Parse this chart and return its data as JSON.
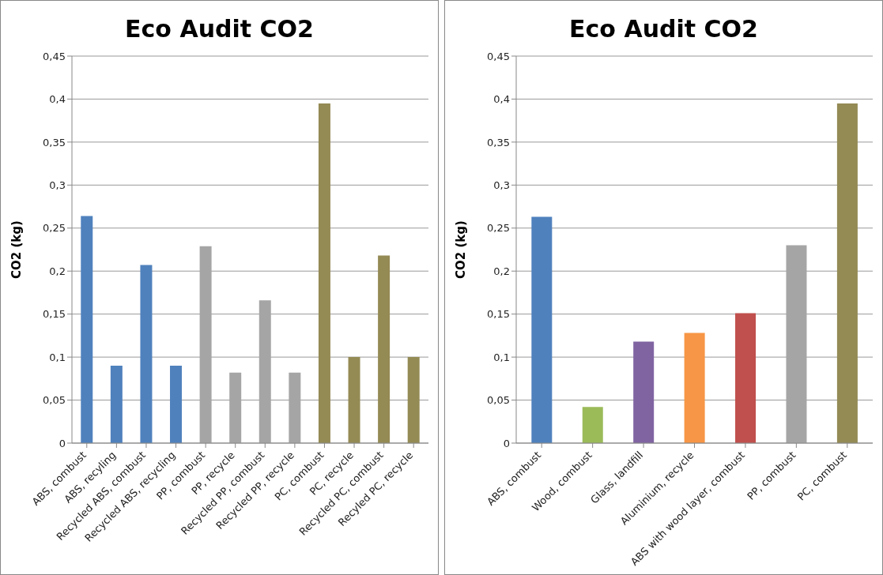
{
  "chart_data": [
    {
      "type": "bar",
      "title": "Eco Audit CO2",
      "ylabel": "CO2 (kg)",
      "categories": [
        "ABS, combust",
        "ABS, recyling",
        "Recycled ABS, combust",
        "Recycled ABS, recycling",
        "PP, combust",
        "PP, recycle",
        "Recycled PP, combust",
        "Recycled PP, recycle",
        "PC, combust",
        "PC, recycle",
        "Recycled PC, combust",
        "Recyled PC, recycle"
      ],
      "values": [
        0.264,
        0.09,
        0.207,
        0.09,
        0.229,
        0.082,
        0.166,
        0.082,
        0.395,
        0.1,
        0.218,
        0.1
      ],
      "colors": [
        "#4f81bd",
        "#4f81bd",
        "#4f81bd",
        "#4f81bd",
        "#a5a5a5",
        "#a5a5a5",
        "#a5a5a5",
        "#a5a5a5",
        "#948a54",
        "#948a54",
        "#948a54",
        "#948a54"
      ],
      "ylim": [
        0,
        0.45
      ],
      "yticks": [
        0,
        {
          "value": 0.05,
          "label": "0,05"
        },
        {
          "value": 0.1,
          "label": "0,1"
        },
        {
          "value": 0.15,
          "label": "0,15"
        },
        {
          "value": 0.2,
          "label": "0,2"
        },
        {
          "value": 0.25,
          "label": "0,25"
        },
        {
          "value": 0.3,
          "label": "0,3"
        },
        {
          "value": 0.35,
          "label": "0,35"
        },
        {
          "value": 0.4,
          "label": "0,4"
        },
        {
          "value": 0.45,
          "label": "0,45"
        }
      ],
      "grid": "y",
      "legend": false
    },
    {
      "type": "bar",
      "title": "Eco Audit CO2",
      "ylabel": "CO2 (kg)",
      "categories": [
        "ABS, combust",
        "Wood, combust",
        "Glass, landfill",
        "Aluminium, recycle",
        "ABS with wood layer, combust",
        "PP, combust",
        "PC, combust"
      ],
      "values": [
        0.263,
        0.042,
        0.118,
        0.128,
        0.151,
        0.23,
        0.395
      ],
      "colors": [
        "#4f81bd",
        "#9bbb59",
        "#8064a2",
        "#f79646",
        "#c0504d",
        "#a5a5a5",
        "#948a54"
      ],
      "ylim": [
        0,
        0.45
      ],
      "yticks": [
        0,
        {
          "value": 0.05,
          "label": "0,05"
        },
        {
          "value": 0.1,
          "label": "0,1"
        },
        {
          "value": 0.15,
          "label": "0,15"
        },
        {
          "value": 0.2,
          "label": "0,2"
        },
        {
          "value": 0.25,
          "label": "0,25"
        },
        {
          "value": 0.3,
          "label": "0,3"
        },
        {
          "value": 0.35,
          "label": "0,35"
        },
        {
          "value": 0.4,
          "label": "0,4"
        },
        {
          "value": 0.45,
          "label": "0,45"
        }
      ],
      "grid": "y",
      "legend": false
    }
  ]
}
